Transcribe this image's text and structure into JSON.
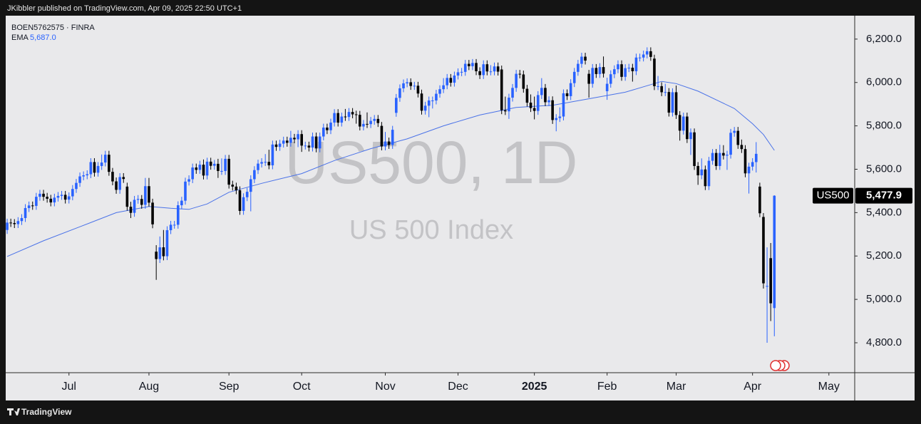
{
  "header": {
    "text": "JKibbler published on TradingView.com, Apr 09, 2025 22:50 UTC+1"
  },
  "footer": {
    "brand": "TradingView"
  },
  "chart_data": {
    "type": "candlestick",
    "symbol_label": "BOEN5762575 · FINRA",
    "watermark_title": "US500, 1D",
    "watermark_subtitle": "US 500 Index",
    "series": [
      {
        "name": "US500",
        "up_color": "#2962ff",
        "down_color": "#000000",
        "last_label": "5,477.9",
        "open": [
          5320,
          5354,
          5352,
          5347,
          5361,
          5375,
          5421,
          5433,
          5431,
          5473,
          5487,
          5473,
          5464,
          5447,
          5469,
          5477,
          5482,
          5460,
          5475,
          5509,
          5537,
          5567,
          5572,
          5577,
          5633,
          5584,
          5615,
          5631,
          5667,
          5588,
          5544,
          5505,
          5564,
          5520,
          5427,
          5399,
          5459,
          5463,
          5436,
          5522,
          5446,
          5220,
          5186,
          5240,
          5199,
          5319,
          5344,
          5344,
          5434,
          5455,
          5543,
          5554,
          5608,
          5597,
          5621,
          5571,
          5635,
          5616,
          5625,
          5592,
          5592,
          5648,
          5529,
          5520,
          5503,
          5408,
          5471,
          5496,
          5554,
          5596,
          5626,
          5633,
          5634,
          5618,
          5714,
          5703,
          5718,
          5732,
          5722,
          5745,
          5738,
          5762,
          5709,
          5709,
          5700,
          5751,
          5696,
          5751,
          5792,
          5780,
          5815,
          5859,
          5815,
          5843,
          5841,
          5864,
          5853,
          5851,
          5797,
          5809,
          5808,
          5823,
          5832,
          5800,
          5705,
          5728,
          5712,
          5860,
          5929,
          5973,
          5996,
          6001,
          5984,
          5985,
          5949,
          5870,
          5893,
          5917,
          5917,
          5948,
          5969,
          5987,
          6021,
          5999,
          6032,
          6047,
          6049,
          6086,
          6075,
          6090,
          6052,
          6034,
          6084,
          6051,
          6051,
          6074,
          6060,
          5872,
          5867,
          5930,
          5975,
          6040,
          6037,
          5971,
          5907,
          5882,
          5869,
          5942,
          5975,
          5909,
          5918,
          5827,
          5836,
          5843,
          5950,
          5937,
          5997,
          6049,
          6086,
          6119,
          6040,
          5994,
          6067,
          6039,
          6071,
          5960,
          5994,
          6038,
          6061,
          6084,
          6026,
          6066,
          6068,
          6052,
          6115,
          6115,
          6129,
          6144,
          6110,
          5983,
          5983,
          5955,
          5956,
          5861,
          5955,
          5850,
          5778,
          5843,
          5739,
          5770,
          5615,
          5572,
          5599,
          5522,
          5639,
          5675,
          5615,
          5675,
          5663,
          5667,
          5768,
          5777,
          5712,
          5693,
          5581,
          5612,
          5633,
          5520,
          5380,
          5060,
          5190,
          4960
        ],
        "high": [
          5372,
          5372,
          5370,
          5379,
          5393,
          5439,
          5451,
          5451,
          5491,
          5505,
          5505,
          5491,
          5482,
          5487,
          5495,
          5500,
          5500,
          5493,
          5527,
          5555,
          5585,
          5590,
          5595,
          5651,
          5651,
          5633,
          5668,
          5685,
          5685,
          5606,
          5562,
          5582,
          5582,
          5538,
          5450,
          5477,
          5481,
          5481,
          5560,
          5560,
          5464,
          5250,
          5290,
          5320,
          5337,
          5362,
          5362,
          5452,
          5473,
          5561,
          5572,
          5626,
          5626,
          5639,
          5645,
          5653,
          5653,
          5643,
          5648,
          5650,
          5666,
          5666,
          5547,
          5538,
          5521,
          5489,
          5514,
          5572,
          5614,
          5644,
          5651,
          5670,
          5690,
          5732,
          5732,
          5736,
          5750,
          5750,
          5777,
          5763,
          5780,
          5780,
          5727,
          5727,
          5769,
          5769,
          5769,
          5810,
          5810,
          5833,
          5877,
          5877,
          5861,
          5878,
          5882,
          5882,
          5870,
          5869,
          5827,
          5862,
          5841,
          5850,
          5850,
          5818,
          5772,
          5746,
          5800,
          5947,
          5991,
          6014,
          6019,
          6019,
          6003,
          6003,
          5967,
          5911,
          5935,
          5935,
          5966,
          5987,
          6020,
          6039,
          6039,
          6050,
          6065,
          6067,
          6104,
          6104,
          6108,
          6108,
          6070,
          6102,
          6102,
          6080,
          6092,
          6092,
          6078,
          5935,
          5948,
          5993,
          6058,
          6058,
          6055,
          5989,
          5945,
          5935,
          5960,
          6020,
          5993,
          5936,
          5936,
          5854,
          5885,
          5968,
          5968,
          6015,
          6067,
          6104,
          6137,
          6137,
          6058,
          6085,
          6085,
          6089,
          6120,
          6022,
          6056,
          6079,
          6102,
          6102,
          6084,
          6086,
          6086,
          6133,
          6133,
          6147,
          6162,
          6162,
          6128,
          6030,
          6001,
          5994,
          5974,
          5973,
          5986,
          5868,
          5861,
          5861,
          5788,
          5788,
          5633,
          5650,
          5617,
          5657,
          5693,
          5693,
          5713,
          5711,
          5685,
          5786,
          5795,
          5795,
          5737,
          5711,
          5630,
          5651,
          5725,
          5538,
          5398,
          5240,
          5260,
          5480
        ],
        "low": [
          5302,
          5334,
          5329,
          5329,
          5343,
          5357,
          5403,
          5413,
          5413,
          5455,
          5455,
          5446,
          5429,
          5429,
          5451,
          5459,
          5442,
          5442,
          5457,
          5491,
          5519,
          5549,
          5554,
          5559,
          5566,
          5566,
          5597,
          5613,
          5570,
          5526,
          5487,
          5487,
          5537,
          5409,
          5375,
          5381,
          5441,
          5418,
          5418,
          5428,
          5328,
          5090,
          5168,
          5180,
          5181,
          5301,
          5326,
          5326,
          5416,
          5437,
          5525,
          5536,
          5579,
          5579,
          5553,
          5553,
          5598,
          5598,
          5560,
          5574,
          5574,
          5511,
          5502,
          5485,
          5390,
          5390,
          5453,
          5406,
          5536,
          5578,
          5608,
          5615,
          5600,
          5600,
          5685,
          5685,
          5700,
          5704,
          5704,
          5720,
          5702,
          5680,
          5691,
          5682,
          5682,
          5678,
          5678,
          5733,
          5762,
          5762,
          5797,
          5797,
          5797,
          5823,
          5823,
          5835,
          5810,
          5779,
          5779,
          5790,
          5790,
          5805,
          5795,
          5687,
          5687,
          5694,
          5694,
          5842,
          5911,
          5955,
          5978,
          5966,
          5966,
          5931,
          5852,
          5852,
          5840,
          5880,
          5899,
          5930,
          5951,
          5969,
          5981,
          5981,
          6014,
          6029,
          6031,
          6057,
          6057,
          6034,
          6016,
          6016,
          6033,
          6033,
          6033,
          6032,
          5854,
          5850,
          5832,
          5912,
          5957,
          6019,
          5953,
          5889,
          5864,
          5830,
          5851,
          5924,
          5891,
          5891,
          5809,
          5775,
          5818,
          5825,
          5919,
          5919,
          5979,
          6031,
          6068,
          6083,
          5930,
          5976,
          6021,
          6021,
          6023,
          5920,
          5976,
          6020,
          6043,
          6008,
          6008,
          6048,
          6004,
          6034,
          6097,
          6097,
          6111,
          6100,
          5965,
          5965,
          5937,
          5937,
          5843,
          5843,
          5832,
          5732,
          5760,
          5721,
          5666,
          5597,
          5528,
          5554,
          5504,
          5504,
          5621,
          5597,
          5597,
          5645,
          5597,
          5649,
          5750,
          5694,
          5675,
          5563,
          5488,
          5594,
          5585,
          5379,
          5050,
          4800,
          4900,
          4830
        ],
        "close": [
          5354,
          5352,
          5347,
          5361,
          5375,
          5421,
          5433,
          5431,
          5473,
          5487,
          5473,
          5464,
          5447,
          5469,
          5477,
          5482,
          5460,
          5475,
          5509,
          5537,
          5567,
          5572,
          5577,
          5633,
          5584,
          5615,
          5631,
          5667,
          5588,
          5544,
          5505,
          5564,
          5555,
          5427,
          5399,
          5459,
          5463,
          5436,
          5522,
          5446,
          5346,
          5186,
          5240,
          5199,
          5319,
          5344,
          5344,
          5434,
          5455,
          5543,
          5554,
          5608,
          5597,
          5621,
          5571,
          5635,
          5616,
          5625,
          5592,
          5592,
          5648,
          5529,
          5520,
          5503,
          5408,
          5471,
          5496,
          5554,
          5596,
          5626,
          5633,
          5634,
          5618,
          5714,
          5703,
          5718,
          5732,
          5722,
          5745,
          5738,
          5762,
          5709,
          5709,
          5700,
          5751,
          5696,
          5751,
          5792,
          5780,
          5815,
          5859,
          5815,
          5843,
          5841,
          5864,
          5853,
          5851,
          5797,
          5809,
          5808,
          5823,
          5832,
          5813,
          5705,
          5728,
          5712,
          5782,
          5929,
          5973,
          5996,
          6001,
          5984,
          5985,
          5949,
          5870,
          5893,
          5917,
          5917,
          5948,
          5969,
          5987,
          6021,
          5999,
          6032,
          6047,
          6049,
          6086,
          6075,
          6090,
          6052,
          6034,
          6084,
          6051,
          6051,
          6074,
          6050,
          5872,
          5867,
          5930,
          5975,
          6040,
          6037,
          5971,
          5907,
          5882,
          5869,
          5942,
          5975,
          5909,
          5918,
          5827,
          5836,
          5843,
          5950,
          5937,
          5997,
          6049,
          6086,
          6119,
          6101,
          5994,
          6067,
          6039,
          6071,
          6041,
          5994,
          6038,
          6061,
          6084,
          6026,
          6066,
          6068,
          6052,
          6115,
          6115,
          6129,
          6144,
          6118,
          5983,
          5983,
          5955,
          5956,
          5861,
          5955,
          5850,
          5778,
          5843,
          5739,
          5770,
          5615,
          5572,
          5599,
          5522,
          5639,
          5675,
          5615,
          5675,
          5663,
          5667,
          5768,
          5777,
          5712,
          5693,
          5581,
          5612,
          5633,
          5671,
          5397,
          5074,
          5062,
          4982,
          5477.9
        ]
      }
    ],
    "ema": {
      "name": "EMA",
      "color": "#4a72e8",
      "last_label": "5,687.0",
      "x": [
        0,
        10,
        20,
        30,
        39,
        45,
        50,
        55,
        61,
        70,
        81,
        90,
        100,
        110,
        120,
        130,
        140,
        150,
        160,
        170,
        180,
        184,
        190,
        195,
        200,
        205,
        208,
        211
      ],
      "values": [
        5198,
        5270,
        5335,
        5400,
        5428,
        5420,
        5415,
        5440,
        5494,
        5535,
        5580,
        5640,
        5695,
        5740,
        5800,
        5850,
        5885,
        5895,
        5925,
        5955,
        6005,
        5995,
        5960,
        5920,
        5880,
        5810,
        5760,
        5687
      ]
    },
    "xlim": [
      -0.4,
      233.1
    ],
    "xticks": [
      {
        "value": 17,
        "label": "Jul"
      },
      {
        "value": 39,
        "label": "Aug"
      },
      {
        "value": 61,
        "label": "Sep"
      },
      {
        "value": 81,
        "label": "Oct"
      },
      {
        "value": 104,
        "label": "Nov"
      },
      {
        "value": 124,
        "label": "Dec"
      },
      {
        "value": 145,
        "label": "2025"
      },
      {
        "value": 165,
        "label": "Feb"
      },
      {
        "value": 184,
        "label": "Mar"
      },
      {
        "value": 205,
        "label": "Apr"
      },
      {
        "value": 226,
        "label": "May"
      }
    ],
    "ylim": [
      4662,
      6308
    ],
    "yticks": [
      {
        "value": 4800,
        "label": "4,800.0"
      },
      {
        "value": 5000,
        "label": "5,000.0"
      },
      {
        "value": 5200,
        "label": "5,200.0"
      },
      {
        "value": 5400,
        "label": "5,400.0"
      },
      {
        "value": 5600,
        "label": "5,600.0"
      },
      {
        "value": 5800,
        "label": "5,800.0"
      },
      {
        "value": 6000,
        "label": "6,000.0"
      },
      {
        "value": 6200,
        "label": "6,200.0"
      }
    ]
  }
}
